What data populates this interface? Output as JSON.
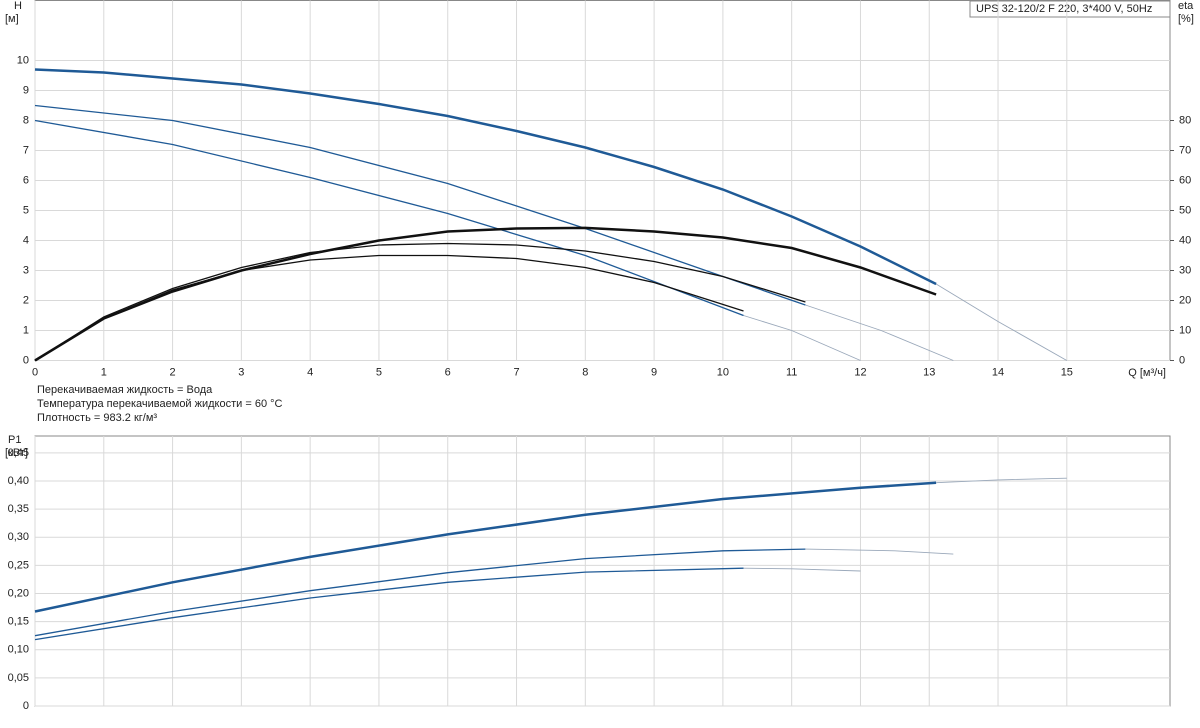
{
  "chart_data": [
    {
      "type": "line",
      "y_label": "H",
      "y_unit": "[м]",
      "y2_label": "eta",
      "y2_unit": "[%]",
      "x_label": "Q [м³/ч]",
      "title": "UPS 32-120/2 F 220, 3*400 V, 50Hz",
      "annotations": [
        "Перекачиваемая жидкость = Вода",
        "Температура перекачиваемой жидкости = 60 °C",
        "Плотность = 983.2 кг/м³"
      ],
      "xlim": [
        0,
        16.5
      ],
      "xticks": [
        0,
        1,
        2,
        3,
        4,
        5,
        6,
        7,
        8,
        9,
        10,
        11,
        12,
        13,
        14,
        15
      ],
      "ylim": [
        0,
        12
      ],
      "yticks": [
        0,
        1,
        2,
        3,
        4,
        5,
        6,
        7,
        8,
        9,
        10
      ],
      "y2lim": [
        0,
        120
      ],
      "y2ticks": [
        0,
        10,
        20,
        30,
        40,
        50,
        60,
        70,
        80
      ],
      "grid": true,
      "series": [
        {
          "color": "#1f5a96",
          "linewidth": 2.5,
          "x": [
            0,
            1,
            2,
            3,
            4,
            5,
            6,
            7,
            8,
            9,
            10,
            11,
            12,
            13.1
          ],
          "values": [
            9.7,
            9.6,
            9.4,
            9.2,
            8.9,
            8.55,
            8.15,
            7.65,
            7.1,
            6.45,
            5.7,
            4.8,
            3.8,
            2.55
          ]
        },
        {
          "color": "#9aa8ba",
          "linewidth": 0.9,
          "x": [
            13.1,
            14,
            15
          ],
          "values": [
            2.55,
            1.3,
            0
          ]
        },
        {
          "color": "#1f5a96",
          "linewidth": 1.3,
          "x": [
            0,
            2,
            4,
            6,
            8,
            10,
            11.2
          ],
          "values": [
            8.5,
            8.0,
            7.1,
            5.9,
            4.4,
            2.8,
            1.85
          ]
        },
        {
          "color": "#9aa8ba",
          "linewidth": 0.9,
          "x": [
            11.2,
            12.3,
            13.35
          ],
          "values": [
            1.85,
            1.0,
            0
          ]
        },
        {
          "color": "#1f5a96",
          "linewidth": 1.3,
          "x": [
            0,
            2,
            4,
            6,
            8,
            10.3
          ],
          "values": [
            8.0,
            7.2,
            6.1,
            4.9,
            3.5,
            1.5
          ]
        },
        {
          "color": "#9aa8ba",
          "linewidth": 0.9,
          "x": [
            10.3,
            11,
            12
          ],
          "values": [
            1.5,
            1.0,
            0
          ]
        },
        {
          "color": "#111111",
          "linewidth": 2.5,
          "axis": "y2",
          "x": [
            0,
            1,
            2,
            3,
            4,
            5,
            6,
            7,
            8,
            9,
            10,
            11,
            12,
            13.1
          ],
          "values": [
            0,
            14,
            23,
            30,
            35.5,
            40,
            43,
            44,
            44.2,
            43,
            41,
            37.5,
            31,
            22
          ]
        },
        {
          "color": "#111111",
          "linewidth": 1.3,
          "axis": "y2",
          "x": [
            0,
            1,
            2,
            3,
            4,
            5,
            6,
            7,
            8,
            9,
            10,
            11.2
          ],
          "values": [
            0,
            14.5,
            24,
            31,
            36,
            38.5,
            39,
            38.5,
            36.5,
            33,
            28,
            19.5
          ]
        },
        {
          "color": "#111111",
          "linewidth": 1.3,
          "axis": "y2",
          "x": [
            0,
            1,
            2,
            3,
            4,
            5,
            6,
            7,
            8,
            9,
            10.3
          ],
          "values": [
            0,
            14,
            23.5,
            30,
            33.5,
            35,
            35,
            34,
            31,
            26,
            16.5
          ]
        }
      ]
    },
    {
      "type": "line",
      "y_label": "P1",
      "y_unit": "[кВт]",
      "xlim": [
        0,
        16.5
      ],
      "xticks": [
        0,
        1,
        2,
        3,
        4,
        5,
        6,
        7,
        8,
        9,
        10,
        11,
        12,
        13,
        14,
        15
      ],
      "ylim": [
        0,
        0.48
      ],
      "yticks": [
        {
          "value": 0,
          "label": "0"
        },
        {
          "value": 0.05,
          "label": "0,05"
        },
        {
          "value": 0.1,
          "label": "0,10"
        },
        {
          "value": 0.15,
          "label": "0,15"
        },
        {
          "value": 0.2,
          "label": "0,20"
        },
        {
          "value": 0.25,
          "label": "0,25"
        },
        {
          "value": 0.3,
          "label": "0,30"
        },
        {
          "value": 0.35,
          "label": "0,35"
        },
        {
          "value": 0.4,
          "label": "0,40"
        },
        {
          "value": 0.45,
          "label": "0,45"
        }
      ],
      "grid": true,
      "series": [
        {
          "color": "#1f5a96",
          "linewidth": 2.5,
          "x": [
            0,
            2,
            4,
            6,
            8,
            10,
            12,
            13.1
          ],
          "values": [
            0.168,
            0.22,
            0.265,
            0.305,
            0.34,
            0.368,
            0.388,
            0.397
          ]
        },
        {
          "color": "#9aa8ba",
          "linewidth": 0.9,
          "x": [
            13.1,
            14,
            15
          ],
          "values": [
            0.397,
            0.402,
            0.405
          ]
        },
        {
          "color": "#1f5a96",
          "linewidth": 1.3,
          "x": [
            0,
            2,
            4,
            6,
            8,
            10,
            11.2
          ],
          "values": [
            0.125,
            0.168,
            0.205,
            0.237,
            0.262,
            0.276,
            0.279
          ]
        },
        {
          "color": "#9aa8ba",
          "linewidth": 0.9,
          "x": [
            11.2,
            12.5,
            13.35
          ],
          "values": [
            0.279,
            0.276,
            0.27
          ]
        },
        {
          "color": "#1f5a96",
          "linewidth": 1.3,
          "x": [
            0,
            2,
            4,
            6,
            8,
            10.3
          ],
          "values": [
            0.118,
            0.157,
            0.192,
            0.22,
            0.238,
            0.245
          ]
        },
        {
          "color": "#9aa8ba",
          "linewidth": 0.9,
          "x": [
            10.3,
            11,
            12
          ],
          "values": [
            0.245,
            0.244,
            0.24
          ]
        }
      ]
    }
  ]
}
